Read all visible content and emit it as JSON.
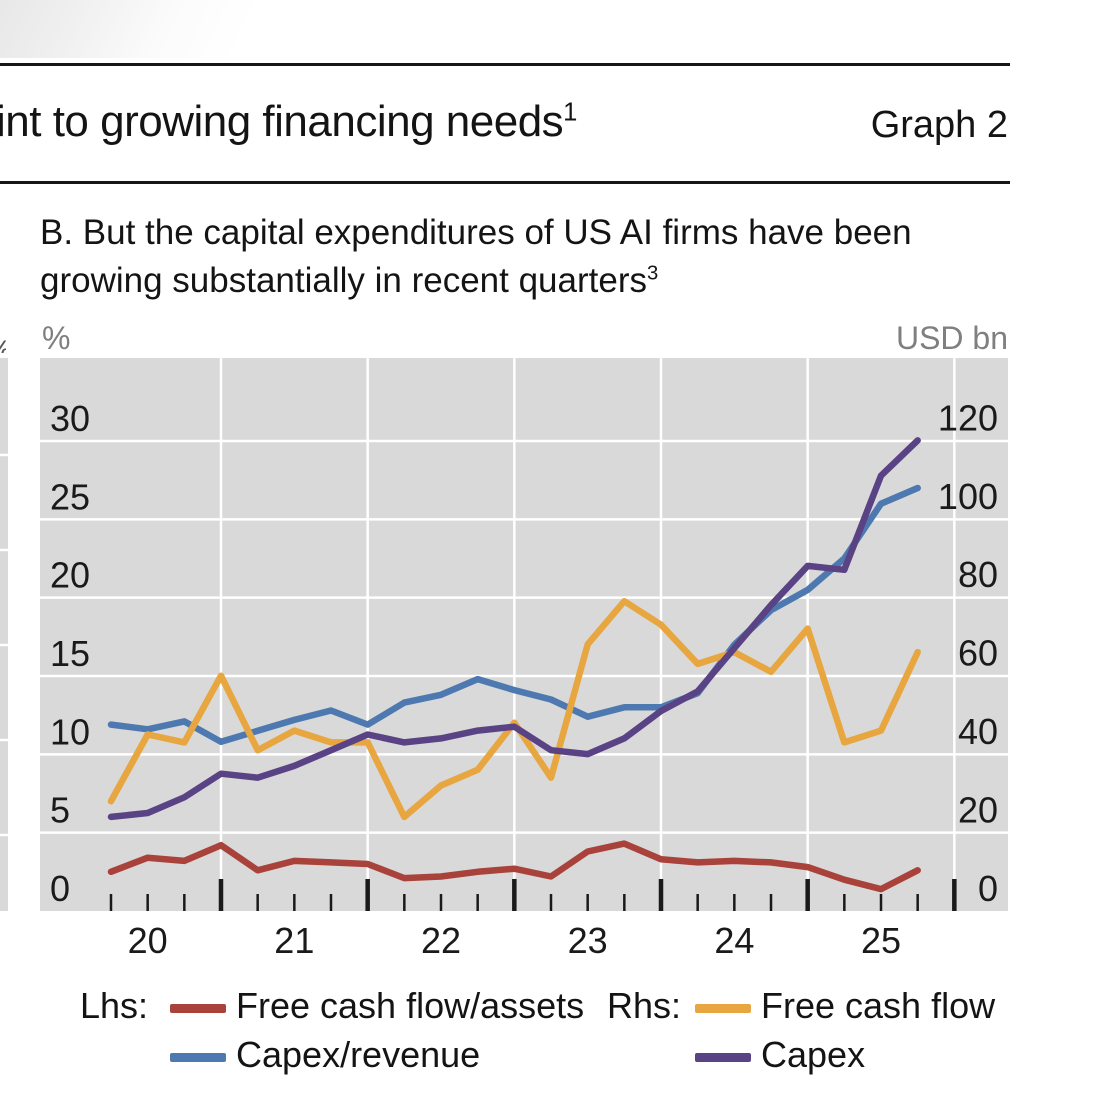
{
  "header": {
    "title_fragment": "int to growing financing needs",
    "title_superscript": "1",
    "graph_label": "Graph 2"
  },
  "panel": {
    "subtitle": "B. But the capital expenditures of US AI firms have been growing substantially in recent quarters",
    "subtitle_superscript": "3"
  },
  "chart_data": {
    "type": "line",
    "title": "B. But the capital expenditures of US AI firms have been growing substantially in recent quarters",
    "plot_background": "#D9D9D9",
    "gridline_color": "#FFFFFF",
    "tick_color": "#1a1a1a",
    "legend_position": "bottom",
    "left_axis": {
      "unit": "%",
      "ticks": [
        0,
        5,
        10,
        15,
        20,
        25,
        30
      ],
      "range": [
        0,
        35.3
      ]
    },
    "right_axis": {
      "unit": "USD bn",
      "ticks": [
        0,
        20,
        40,
        60,
        80,
        100,
        120
      ],
      "range": [
        0,
        141
      ]
    },
    "x_year_labels": [
      "20",
      "21",
      "22",
      "23",
      "24",
      "25"
    ],
    "x_quarters": [
      "2020 Q1",
      "2020 Q2",
      "2020 Q3",
      "2020 Q4",
      "2021 Q1",
      "2021 Q2",
      "2021 Q3",
      "2021 Q4",
      "2022 Q1",
      "2022 Q2",
      "2022 Q3",
      "2022 Q4",
      "2023 Q1",
      "2023 Q2",
      "2023 Q3",
      "2023 Q4",
      "2024 Q1",
      "2024 Q2",
      "2024 Q3",
      "2024 Q4",
      "2025 Q1",
      "2025 Q2",
      "2025 Q3"
    ],
    "series": [
      {
        "name": "Free cash flow/assets",
        "axis": "lhs",
        "color": "#A8423A",
        "values": [
          2.5,
          3.4,
          3.2,
          4.2,
          2.6,
          3.2,
          3.1,
          3.0,
          2.1,
          2.2,
          2.5,
          2.7,
          2.2,
          3.8,
          4.3,
          3.3,
          3.1,
          3.2,
          3.1,
          2.8,
          2.0,
          1.4,
          2.6
        ]
      },
      {
        "name": "Capex/revenue",
        "axis": "lhs",
        "color": "#4E79B0",
        "values": [
          11.9,
          11.6,
          12.1,
          10.8,
          11.5,
          12.2,
          12.8,
          11.9,
          13.3,
          13.8,
          14.8,
          14.1,
          13.5,
          12.4,
          13.0,
          13.0,
          13.9,
          17.0,
          19.2,
          20.5,
          22.5,
          26.0,
          27.0
        ]
      },
      {
        "name": "Free cash flow",
        "axis": "rhs",
        "color": "#E7A63F",
        "values": [
          28,
          45,
          43,
          60,
          41,
          46,
          43,
          43,
          24,
          32,
          36,
          48,
          34,
          68,
          79,
          73,
          63,
          66,
          61,
          72,
          43,
          46,
          66
        ]
      },
      {
        "name": "Capex",
        "axis": "rhs",
        "color": "#5A4384",
        "values": [
          24,
          25,
          29,
          35,
          34,
          37,
          41,
          45,
          43,
          44,
          46,
          47,
          41,
          40,
          44,
          51,
          56,
          67,
          78,
          88,
          87,
          111,
          120
        ]
      }
    ]
  },
  "legend": {
    "lhs_label": "Lhs:",
    "rhs_label": "Rhs:",
    "items": [
      {
        "label": "Free cash flow/assets",
        "color": "#A8423A"
      },
      {
        "label": "Capex/revenue",
        "color": "#4E79B0"
      },
      {
        "label": "Free cash flow",
        "color": "#E7A63F"
      },
      {
        "label": "Capex",
        "color": "#5A4384"
      }
    ]
  }
}
